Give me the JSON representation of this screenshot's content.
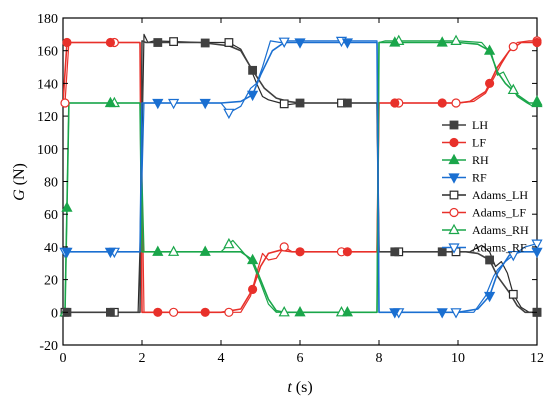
{
  "chart_data": {
    "type": "line",
    "xlabel": {
      "var": "t",
      "unit": " (s)"
    },
    "ylabel": {
      "var": "G",
      "unit": " (N)"
    },
    "xlim": [
      0,
      12
    ],
    "ylim": [
      -20,
      180
    ],
    "xticks": [
      "0",
      "2",
      "4",
      "6",
      "8",
      "10",
      "12"
    ],
    "yticks": [
      "-20",
      "0",
      "20",
      "40",
      "60",
      "80",
      "100",
      "120",
      "140",
      "160",
      "180"
    ],
    "grid": false,
    "legend_position": "right-middle",
    "series": [
      {
        "name": "LH",
        "color": "#404040",
        "marker": "square",
        "filled": true,
        "x": [
          0,
          1.95,
          2.0,
          2.1,
          2.3,
          3.5,
          4.2,
          4.5,
          4.8,
          5.1,
          5.4,
          5.7,
          6.0,
          7.0,
          7.95,
          8.0,
          8.2,
          9.5,
          10.2,
          10.5,
          10.8,
          11.0,
          11.3,
          11.5,
          11.7,
          12
        ],
        "y": [
          0,
          0,
          166,
          165,
          165,
          165,
          163,
          160,
          148,
          137,
          131,
          129,
          128,
          128,
          128,
          37,
          37,
          37,
          37,
          36,
          32,
          22,
          12,
          4,
          0,
          0
        ]
      },
      {
        "name": "LF",
        "color": "#e8302a",
        "marker": "circle",
        "filled": true,
        "x": [
          0,
          0.1,
          0.2,
          1.95,
          2.0,
          2.1,
          4.0,
          4.5,
          4.8,
          5.0,
          5.2,
          5.5,
          5.8,
          6.2,
          7.0,
          7.95,
          8.0,
          8.2,
          9.5,
          10.0,
          10.3,
          10.7,
          11.0,
          11.3,
          11.6,
          12
        ],
        "y": [
          128,
          165,
          165,
          165,
          0,
          0,
          0,
          2,
          14,
          28,
          36,
          38,
          37,
          37,
          37,
          37,
          128,
          128,
          128,
          128,
          129,
          135,
          150,
          160,
          165,
          165
        ]
      },
      {
        "name": "RH",
        "color": "#1aa64a",
        "marker": "triangle-up",
        "filled": true,
        "x": [
          0,
          0.05,
          0.15,
          1.95,
          2.0,
          2.1,
          4.0,
          4.5,
          4.8,
          5.0,
          5.2,
          5.4,
          5.6,
          7.95,
          8.0,
          8.2,
          10.0,
          10.5,
          10.8,
          11.0,
          11.2,
          11.5,
          11.8,
          12
        ],
        "y": [
          0,
          0,
          128,
          128,
          37,
          37,
          37,
          37,
          32,
          20,
          8,
          1,
          0,
          0,
          165,
          165,
          165,
          164,
          160,
          147,
          140,
          133,
          128,
          128
        ]
      },
      {
        "name": "RF",
        "color": "#1a6fd1",
        "marker": "triangle-down",
        "filled": true,
        "x": [
          0,
          0.1,
          0.2,
          1.95,
          2.0,
          2.1,
          4.0,
          4.5,
          4.8,
          5.0,
          5.3,
          5.6,
          6.0,
          7.95,
          8.0,
          8.2,
          10.0,
          10.5,
          10.8,
          11.0,
          11.3,
          11.6,
          12
        ],
        "y": [
          37,
          37,
          37,
          37,
          128,
          128,
          128,
          129,
          133,
          145,
          160,
          165,
          165,
          165,
          0,
          0,
          0,
          2,
          10,
          24,
          35,
          37,
          37
        ]
      },
      {
        "name": "Adams_LH",
        "color": "#2a2a2a",
        "marker": "square",
        "filled": false,
        "x": [
          0,
          1.9,
          1.95,
          2.05,
          2.15,
          2.3,
          3.5,
          4.2,
          4.5,
          4.7,
          4.9,
          5.05,
          5.2,
          5.5,
          5.7,
          6.0,
          7.0,
          7.95,
          8.0,
          8.2,
          9.5,
          10.3,
          10.6,
          10.8,
          10.95,
          11.1,
          11.25,
          11.4,
          11.6,
          11.8,
          12
        ],
        "y": [
          0,
          0,
          40,
          170,
          165,
          166,
          165,
          165,
          161,
          152,
          140,
          132,
          130,
          128,
          127,
          128,
          128,
          128,
          37,
          37,
          37,
          37,
          41,
          37,
          28,
          31,
          24,
          11,
          3,
          0,
          0
        ]
      },
      {
        "name": "Adams_LF",
        "color": "#e8302a",
        "marker": "circle",
        "filled": false,
        "x": [
          0,
          0.05,
          0.15,
          1.9,
          1.95,
          2.05,
          4.0,
          4.5,
          4.75,
          4.9,
          5.05,
          5.2,
          5.4,
          5.6,
          5.8,
          6.2,
          7.0,
          7.95,
          8.0,
          8.2,
          9.5,
          10.0,
          10.4,
          10.7,
          10.9,
          11.1,
          11.3,
          11.5,
          11.8,
          12
        ],
        "y": [
          128,
          128,
          165,
          165,
          165,
          0,
          0,
          0,
          10,
          24,
          36,
          32,
          33,
          40,
          37,
          37,
          37,
          37,
          128,
          128,
          128,
          128,
          129,
          134,
          143,
          152,
          160,
          165,
          166,
          166
        ]
      },
      {
        "name": "Adams_RH",
        "color": "#1aa64a",
        "marker": "triangle-up",
        "filled": false,
        "x": [
          0,
          0.05,
          0.15,
          1.9,
          1.95,
          2.05,
          4.0,
          4.3,
          4.55,
          4.8,
          5.0,
          5.2,
          5.4,
          5.6,
          7.95,
          8.0,
          8.15,
          10.0,
          10.6,
          10.85,
          11.0,
          11.15,
          11.3,
          11.5,
          11.75,
          11.9,
          12
        ],
        "y": [
          0,
          0,
          128,
          128,
          128,
          37,
          37,
          44,
          37,
          30,
          18,
          5,
          0,
          0,
          0,
          165,
          166,
          166,
          165,
          158,
          145,
          147,
          140,
          132,
          128,
          126,
          129
        ]
      },
      {
        "name": "Adams_RF",
        "color": "#1a6fd1",
        "marker": "triangle-down",
        "filled": false,
        "x": [
          0,
          0.05,
          0.15,
          1.9,
          1.95,
          2.05,
          4.0,
          4.2,
          4.5,
          4.75,
          4.9,
          5.05,
          5.25,
          5.5,
          5.7,
          7.95,
          8.0,
          8.15,
          10.0,
          10.4,
          10.7,
          10.9,
          11.0,
          11.2,
          11.4,
          11.7,
          12
        ],
        "y": [
          37,
          37,
          37,
          37,
          37,
          128,
          128,
          122,
          126,
          137,
          140,
          150,
          166,
          165,
          166,
          166,
          0,
          0,
          0,
          0,
          10,
          22,
          26,
          31,
          35,
          40,
          42
        ]
      }
    ]
  }
}
